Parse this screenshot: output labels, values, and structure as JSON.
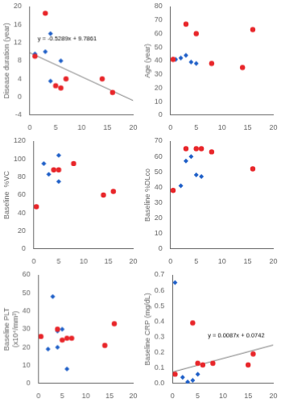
{
  "chart_data": [
    {
      "type": "scatter",
      "ylabel": "Disease duration (year)",
      "xlim": [
        0,
        20
      ],
      "xticks": [
        0,
        5,
        10,
        15,
        20
      ],
      "ylim": [
        -4,
        20
      ],
      "yticks": [
        -4,
        0,
        4,
        8,
        12,
        16,
        20
      ],
      "grid": false,
      "series": [
        {
          "color": "#2060c8",
          "marker": "diamond",
          "x": [
            1,
            3,
            4,
            4,
            6
          ],
          "values": [
            9.5,
            10.0,
            14.0,
            3.5,
            8.0
          ]
        },
        {
          "color": "#e8262a",
          "marker": "circle",
          "x": [
            1,
            3,
            5,
            6,
            7,
            14,
            16
          ],
          "values": [
            9.0,
            18.5,
            2.5,
            2.0,
            4.0,
            4.0,
            1.0
          ]
        },
        {
          "type": "line",
          "color": "#777777",
          "x": [
            0,
            20
          ],
          "values": [
            9.7861,
            -0.7919
          ]
        }
      ],
      "annotations": [
        {
          "text": "y = -0.5289x + 9.7861",
          "x": 1.5,
          "y": 12.5
        }
      ]
    },
    {
      "type": "scatter",
      "ylabel": "Age (year)",
      "xlim": [
        0,
        20
      ],
      "xticks": [
        0,
        5,
        10,
        15,
        20
      ],
      "ylim": [
        0,
        80
      ],
      "yticks": [
        0,
        10,
        20,
        30,
        40,
        50,
        60,
        70,
        80
      ],
      "grid": false,
      "series": [
        {
          "color": "#2060c8",
          "marker": "diamond",
          "x": [
            1,
            2,
            3,
            4,
            5
          ],
          "values": [
            41,
            42,
            44,
            39,
            38
          ]
        },
        {
          "color": "#e8262a",
          "marker": "circle",
          "x": [
            0.5,
            3,
            5,
            8,
            14,
            16
          ],
          "values": [
            41,
            67,
            60,
            38,
            35,
            63
          ]
        }
      ]
    },
    {
      "type": "scatter",
      "ylabel": "Baseline  %VC",
      "xlim": [
        0,
        20
      ],
      "xticks": [
        0,
        5,
        10,
        15,
        20
      ],
      "ylim": [
        0,
        120
      ],
      "yticks": [
        0,
        20,
        40,
        60,
        80,
        100,
        120
      ],
      "grid": false,
      "series": [
        {
          "color": "#2060c8",
          "marker": "diamond",
          "x": [
            2,
            3,
            4,
            5,
            5
          ],
          "values": [
            95,
            83,
            88,
            104,
            75
          ]
        },
        {
          "color": "#e8262a",
          "marker": "circle",
          "x": [
            0.5,
            4,
            5,
            8,
            14,
            16
          ],
          "values": [
            47,
            88,
            88,
            95,
            60,
            64
          ]
        }
      ]
    },
    {
      "type": "scatter",
      "ylabel": "Baseline %DLco",
      "xlim": [
        0,
        20
      ],
      "xticks": [
        0,
        5,
        10,
        15,
        20
      ],
      "ylim": [
        0,
        70
      ],
      "yticks": [
        0,
        10,
        20,
        30,
        40,
        50,
        60,
        70
      ],
      "grid": false,
      "series": [
        {
          "color": "#2060c8",
          "marker": "diamond",
          "x": [
            2,
            3,
            4,
            5,
            6
          ],
          "values": [
            41,
            57,
            60,
            48,
            47
          ]
        },
        {
          "color": "#e8262a",
          "marker": "circle",
          "x": [
            0.5,
            3,
            5,
            6,
            8,
            16
          ],
          "values": [
            38,
            65,
            65,
            65,
            63,
            52
          ]
        }
      ]
    },
    {
      "type": "scatter",
      "ylabel": "Baseline PLT\n(x10⁴/mm³)",
      "xlim": [
        0,
        20
      ],
      "xticks": [
        0,
        5,
        10,
        15,
        20
      ],
      "ylim": [
        0,
        60
      ],
      "yticks": [
        0,
        10,
        20,
        30,
        40,
        50,
        60
      ],
      "grid": false,
      "series": [
        {
          "color": "#2060c8",
          "marker": "diamond",
          "x": [
            0.5,
            2,
            3,
            4,
            4,
            5,
            6
          ],
          "values": [
            26,
            19,
            48,
            20,
            29,
            30,
            8
          ]
        },
        {
          "color": "#e8262a",
          "marker": "circle",
          "x": [
            0.5,
            4,
            5,
            6,
            7,
            14,
            16
          ],
          "values": [
            26,
            30,
            24,
            25,
            25,
            21,
            33
          ]
        }
      ]
    },
    {
      "type": "scatter",
      "ylabel": "Baseline CRP (mg/dL)",
      "xlim": [
        0,
        20
      ],
      "xticks": [
        0,
        5,
        10,
        15,
        20
      ],
      "ylim": [
        0,
        0.7
      ],
      "yticks": [
        {
          "value": 0,
          "label": "0.0"
        },
        0.1,
        0.2,
        0.3,
        0.4,
        0.5,
        0.6,
        0.7
      ],
      "grid": false,
      "series": [
        {
          "color": "#2060c8",
          "marker": "diamond",
          "x": [
            0.5,
            2,
            3,
            4,
            5
          ],
          "values": [
            0.65,
            0.04,
            0.01,
            0.02,
            0.06
          ]
        },
        {
          "color": "#e8262a",
          "marker": "circle",
          "x": [
            0.5,
            4,
            5,
            6,
            8,
            15,
            16
          ],
          "values": [
            0.06,
            0.39,
            0.13,
            0.12,
            0.13,
            0.12,
            0.19
          ]
        },
        {
          "type": "line",
          "color": "#777777",
          "x": [
            0,
            20
          ],
          "values": [
            0.0742,
            0.2482
          ]
        }
      ],
      "annotations": [
        {
          "text": "y = 0.0087x + 0.0742",
          "x": 7.0,
          "y": 0.3
        }
      ]
    }
  ]
}
